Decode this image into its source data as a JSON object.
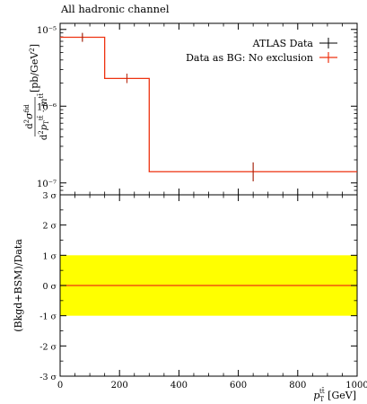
{
  "chart_data": [
    {
      "panel": "main",
      "type": "line",
      "title": "All hadronic channel",
      "ylabel": "d²σ^fid / d²p_T^{tt̄}·m^{tt̄} [pb/GeV²]",
      "yscale": "log",
      "ylim": [
        7e-08,
        1.2e-05
      ],
      "xlim": [
        0,
        1000
      ],
      "y_tick_labels": [
        "10⁻⁵",
        "10⁻⁶",
        "10⁻⁷"
      ],
      "legend_position": "top-right",
      "series": [
        {
          "name": "ATLAS Data",
          "color": "#000000",
          "style": "points-with-errorbars",
          "points": [
            {
              "x": 75,
              "y": 7.9e-06,
              "yerr_lo": 6.9e-06,
              "yerr_hi": 9e-06
            },
            {
              "x": 225,
              "y": 2.3e-06,
              "yerr_lo": 2e-06,
              "yerr_hi": 2.65e-06
            },
            {
              "x": 650,
              "y": 1.4e-07,
              "yerr_lo": 1.05e-07,
              "yerr_hi": 1.85e-07
            }
          ]
        },
        {
          "name": "Data as BG: No exclusion",
          "color": "#ee3311",
          "style": "histogram",
          "bins": [
            {
              "xlo": 0,
              "xhi": 150,
              "y": 7.9e-06
            },
            {
              "xlo": 150,
              "xhi": 300,
              "y": 2.3e-06
            },
            {
              "xlo": 300,
              "xhi": 1000,
              "y": 1.4e-07
            }
          ]
        }
      ]
    },
    {
      "panel": "ratio",
      "type": "line",
      "ylabel": "(Bkgd+BSM)/Data",
      "xlabel": "p_T^{tt̄} [GeV]",
      "xlim": [
        0,
        1000
      ],
      "ylim": [
        -3,
        3
      ],
      "x_ticks": [
        0,
        200,
        400,
        600,
        800,
        1000
      ],
      "y_ticks": [
        {
          "value": 3,
          "label": "3 σ"
        },
        {
          "value": 2,
          "label": "2 σ"
        },
        {
          "value": 1,
          "label": "1 σ"
        },
        {
          "value": 0,
          "label": "0 σ"
        },
        {
          "value": -1,
          "label": "-1 σ"
        },
        {
          "value": -2,
          "label": "-2 σ"
        },
        {
          "value": -3,
          "label": "-3 σ"
        }
      ],
      "band": {
        "ylo": -1,
        "yhi": 1,
        "color": "#ffff00"
      },
      "line": {
        "y": 0,
        "color": "#ee3311"
      }
    }
  ]
}
